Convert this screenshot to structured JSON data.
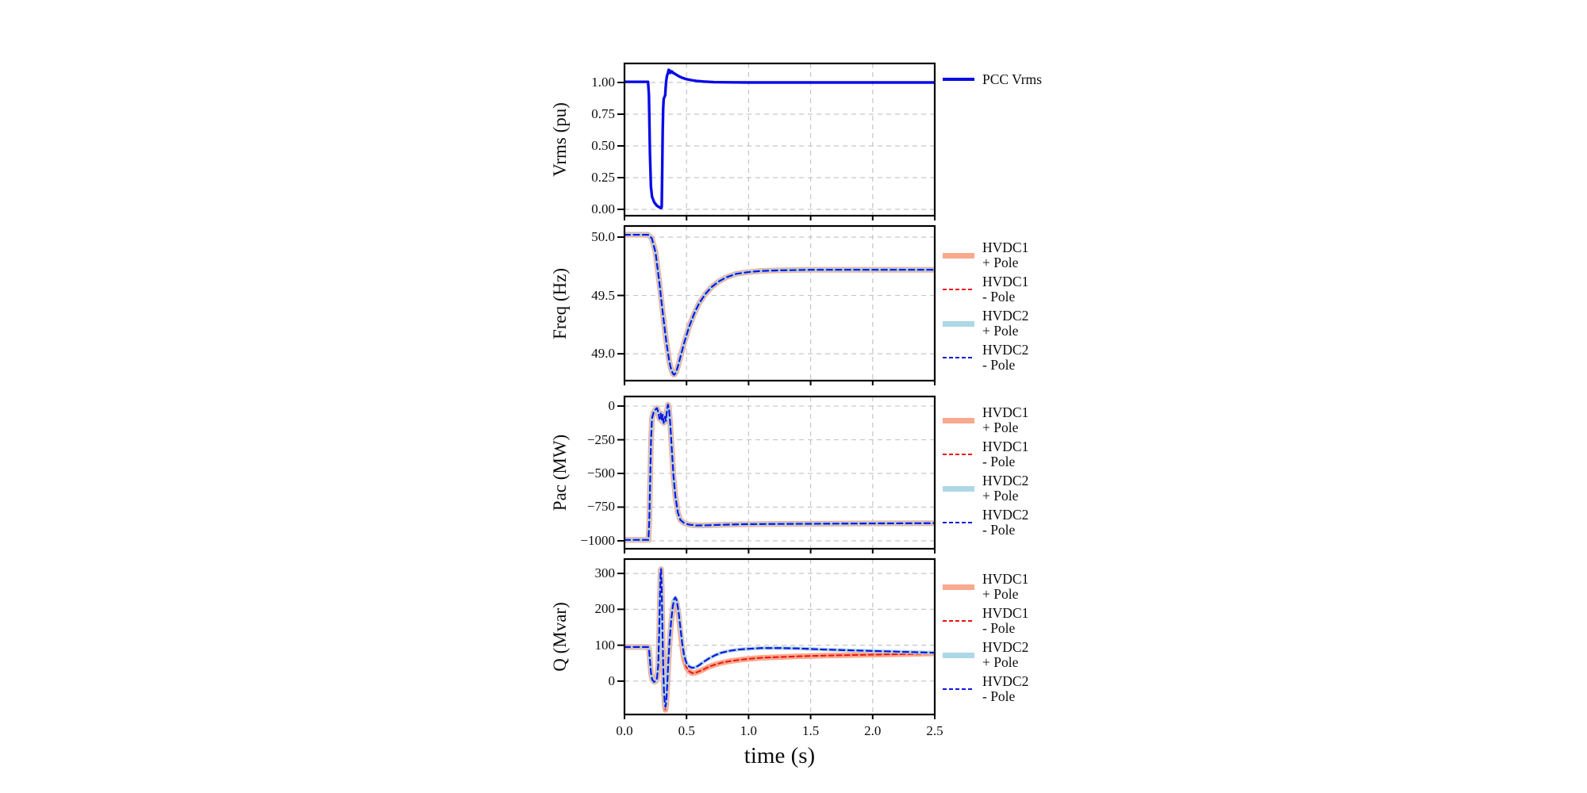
{
  "figure": {
    "xlabel": "time (s)",
    "xticks": [
      {
        "v": 0.0,
        "label": "0.0"
      },
      {
        "v": 0.5,
        "label": "0.5"
      },
      {
        "v": 1.0,
        "label": "1.0"
      },
      {
        "v": 1.5,
        "label": "1.5"
      },
      {
        "v": 2.0,
        "label": "2.0"
      },
      {
        "v": 2.5,
        "label": "2.5"
      }
    ],
    "background": "#ffffff"
  },
  "colors": {
    "pcc_blue": "#0a0ae8",
    "hvdc1_pos": "#f9a98c",
    "hvdc1_neg": "#ee1212",
    "hvdc2_pos": "#add8e6",
    "hvdc2_neg": "#1414e0",
    "grid": "#c6c6c6",
    "axis": "#000000"
  },
  "curves": {
    "vrms": [
      [
        0,
        1.005
      ],
      [
        0.19,
        1.005
      ],
      [
        0.197,
        0.9
      ],
      [
        0.205,
        0.45
      ],
      [
        0.213,
        0.18
      ],
      [
        0.222,
        0.1
      ],
      [
        0.24,
        0.055
      ],
      [
        0.26,
        0.03
      ],
      [
        0.275,
        0.02
      ],
      [
        0.29,
        0.012
      ],
      [
        0.296,
        0.01
      ],
      [
        0.3,
        0.02
      ],
      [
        0.304,
        0.3
      ],
      [
        0.308,
        0.62
      ],
      [
        0.312,
        0.8
      ],
      [
        0.316,
        0.87
      ],
      [
        0.322,
        0.885
      ],
      [
        0.328,
        0.9
      ],
      [
        0.332,
        0.96
      ],
      [
        0.336,
        1.01
      ],
      [
        0.342,
        1.05
      ],
      [
        0.35,
        1.075
      ],
      [
        0.356,
        1.1
      ],
      [
        0.36,
        1.08
      ],
      [
        0.364,
        1.095
      ],
      [
        0.368,
        1.075
      ],
      [
        0.372,
        1.09
      ],
      [
        0.378,
        1.08
      ],
      [
        0.385,
        1.085
      ],
      [
        0.392,
        1.075
      ],
      [
        0.4,
        1.072
      ],
      [
        0.42,
        1.06
      ],
      [
        0.44,
        1.048
      ],
      [
        0.47,
        1.035
      ],
      [
        0.5,
        1.026
      ],
      [
        0.54,
        1.018
      ],
      [
        0.58,
        1.012
      ],
      [
        0.64,
        1.007
      ],
      [
        0.72,
        1.003
      ],
      [
        0.85,
        1.001
      ],
      [
        1.0,
        1.0
      ],
      [
        2.5,
        1.0
      ]
    ],
    "freq": [
      [
        0,
        50.02
      ],
      [
        0.19,
        50.02
      ],
      [
        0.22,
        49.99
      ],
      [
        0.25,
        49.87
      ],
      [
        0.28,
        49.62
      ],
      [
        0.3,
        49.43
      ],
      [
        0.32,
        49.25
      ],
      [
        0.34,
        49.08
      ],
      [
        0.36,
        48.94
      ],
      [
        0.375,
        48.87
      ],
      [
        0.39,
        48.83
      ],
      [
        0.4,
        48.82
      ],
      [
        0.415,
        48.84
      ],
      [
        0.43,
        48.89
      ],
      [
        0.45,
        48.97
      ],
      [
        0.48,
        49.09
      ],
      [
        0.52,
        49.23
      ],
      [
        0.56,
        49.34
      ],
      [
        0.6,
        49.43
      ],
      [
        0.65,
        49.51
      ],
      [
        0.7,
        49.57
      ],
      [
        0.76,
        49.62
      ],
      [
        0.82,
        49.655
      ],
      [
        0.9,
        49.685
      ],
      [
        1.0,
        49.7
      ],
      [
        1.1,
        49.71
      ],
      [
        1.25,
        49.715
      ],
      [
        1.5,
        49.72
      ],
      [
        2.5,
        49.72
      ]
    ],
    "pac": [
      [
        0,
        -993
      ],
      [
        0.193,
        -993
      ],
      [
        0.2,
        -850
      ],
      [
        0.207,
        -550
      ],
      [
        0.214,
        -250
      ],
      [
        0.222,
        -90
      ],
      [
        0.235,
        -45
      ],
      [
        0.25,
        -25
      ],
      [
        0.262,
        -15
      ],
      [
        0.272,
        -45
      ],
      [
        0.282,
        -95
      ],
      [
        0.292,
        -55
      ],
      [
        0.3,
        -110
      ],
      [
        0.308,
        -65
      ],
      [
        0.316,
        -125
      ],
      [
        0.326,
        -80
      ],
      [
        0.334,
        -110
      ],
      [
        0.342,
        -35
      ],
      [
        0.35,
        10
      ],
      [
        0.358,
        -15
      ],
      [
        0.368,
        -120
      ],
      [
        0.38,
        -300
      ],
      [
        0.395,
        -520
      ],
      [
        0.41,
        -670
      ],
      [
        0.43,
        -790
      ],
      [
        0.45,
        -845
      ],
      [
        0.48,
        -868
      ],
      [
        0.52,
        -880
      ],
      [
        0.58,
        -886
      ],
      [
        0.66,
        -885
      ],
      [
        0.78,
        -881
      ],
      [
        0.95,
        -877
      ],
      [
        1.2,
        -875
      ],
      [
        1.6,
        -873
      ],
      [
        2.0,
        -871
      ],
      [
        2.5,
        -869
      ]
    ],
    "q_hvdc1": [
      [
        0,
        95
      ],
      [
        0.19,
        95
      ],
      [
        0.198,
        88
      ],
      [
        0.206,
        55
      ],
      [
        0.214,
        22
      ],
      [
        0.224,
        4
      ],
      [
        0.238,
        -2
      ],
      [
        0.252,
        0
      ],
      [
        0.262,
        8
      ],
      [
        0.272,
        45
      ],
      [
        0.28,
        140
      ],
      [
        0.286,
        240
      ],
      [
        0.291,
        308
      ],
      [
        0.295,
        312
      ],
      [
        0.3,
        260
      ],
      [
        0.306,
        140
      ],
      [
        0.312,
        40
      ],
      [
        0.318,
        -28
      ],
      [
        0.324,
        -65
      ],
      [
        0.33,
        -80
      ],
      [
        0.336,
        -68
      ],
      [
        0.344,
        -20
      ],
      [
        0.352,
        40
      ],
      [
        0.362,
        100
      ],
      [
        0.374,
        155
      ],
      [
        0.388,
        200
      ],
      [
        0.4,
        222
      ],
      [
        0.41,
        228
      ],
      [
        0.42,
        220
      ],
      [
        0.435,
        188
      ],
      [
        0.45,
        140
      ],
      [
        0.465,
        95
      ],
      [
        0.48,
        60
      ],
      [
        0.5,
        38
      ],
      [
        0.52,
        28
      ],
      [
        0.545,
        22
      ],
      [
        0.57,
        23
      ],
      [
        0.6,
        27
      ],
      [
        0.64,
        33
      ],
      [
        0.68,
        40
      ],
      [
        0.73,
        46
      ],
      [
        0.78,
        51
      ],
      [
        0.84,
        55
      ],
      [
        0.92,
        59
      ],
      [
        1.0,
        62
      ],
      [
        1.1,
        65
      ],
      [
        1.25,
        67
      ],
      [
        1.4,
        69
      ],
      [
        1.6,
        71
      ],
      [
        1.9,
        73
      ],
      [
        2.2,
        75
      ],
      [
        2.5,
        77
      ]
    ],
    "q_hvdc2": [
      [
        0,
        95
      ],
      [
        0.19,
        95
      ],
      [
        0.198,
        88
      ],
      [
        0.206,
        55
      ],
      [
        0.214,
        22
      ],
      [
        0.224,
        4
      ],
      [
        0.238,
        -2
      ],
      [
        0.252,
        0
      ],
      [
        0.262,
        8
      ],
      [
        0.272,
        45
      ],
      [
        0.28,
        140
      ],
      [
        0.286,
        240
      ],
      [
        0.291,
        308
      ],
      [
        0.295,
        312
      ],
      [
        0.3,
        260
      ],
      [
        0.306,
        140
      ],
      [
        0.312,
        40
      ],
      [
        0.318,
        -25
      ],
      [
        0.324,
        -58
      ],
      [
        0.33,
        -72
      ],
      [
        0.336,
        -60
      ],
      [
        0.344,
        -15
      ],
      [
        0.352,
        45
      ],
      [
        0.362,
        105
      ],
      [
        0.374,
        160
      ],
      [
        0.388,
        205
      ],
      [
        0.4,
        228
      ],
      [
        0.41,
        233
      ],
      [
        0.42,
        226
      ],
      [
        0.435,
        195
      ],
      [
        0.45,
        150
      ],
      [
        0.465,
        105
      ],
      [
        0.48,
        72
      ],
      [
        0.5,
        50
      ],
      [
        0.52,
        41
      ],
      [
        0.545,
        37
      ],
      [
        0.57,
        38
      ],
      [
        0.6,
        44
      ],
      [
        0.64,
        54
      ],
      [
        0.68,
        63
      ],
      [
        0.73,
        72
      ],
      [
        0.78,
        79
      ],
      [
        0.84,
        84
      ],
      [
        0.92,
        88
      ],
      [
        1.0,
        90
      ],
      [
        1.1,
        92
      ],
      [
        1.25,
        92
      ],
      [
        1.4,
        91
      ],
      [
        1.6,
        88
      ],
      [
        1.8,
        86
      ],
      [
        2.0,
        84
      ],
      [
        2.2,
        82
      ],
      [
        2.5,
        79
      ]
    ]
  },
  "chart_data": [
    {
      "type": "line",
      "id": "vrms",
      "ylabel": "Vrms (pu)",
      "xlabel": "time (s)",
      "xlim": [
        0,
        2.5
      ],
      "ylim": [
        -0.05,
        1.15
      ],
      "grid": true,
      "legend_position": "right",
      "yticks": [
        {
          "v": 1.0,
          "label": "1.00"
        },
        {
          "v": 0.75,
          "label": "0.75"
        },
        {
          "v": 0.5,
          "label": "0.50"
        },
        {
          "v": 0.25,
          "label": "0.25"
        },
        {
          "v": 0.0,
          "label": "0.00"
        }
      ],
      "series": [
        {
          "id": "pcc-vrms",
          "name": "PCC Vrms",
          "label_lines": [
            "PCC Vrms"
          ],
          "curve": "vrms",
          "color": "pcc_blue",
          "width": 3.4,
          "dash": null,
          "sample": "solid"
        }
      ]
    },
    {
      "type": "line",
      "id": "freq",
      "ylabel": "Freq (Hz)",
      "xlim": [
        0,
        2.5
      ],
      "ylim": [
        48.77,
        50.095
      ],
      "grid": true,
      "legend_position": "right",
      "yticks": [
        {
          "v": 50.0,
          "label": "50.0"
        },
        {
          "v": 49.5,
          "label": "49.5"
        },
        {
          "v": 49.0,
          "label": "49.0"
        }
      ],
      "series": [
        {
          "id": "freq-hvdc1-pos",
          "name": "HVDC1 + Pole",
          "label_lines": [
            "HVDC1",
            "+ Pole"
          ],
          "curve": "freq",
          "color": "hvdc1_pos",
          "width": 7,
          "dash": null,
          "sample": "thick"
        },
        {
          "id": "freq-hvdc1-neg",
          "name": "HVDC1 - Pole",
          "label_lines": [
            "HVDC1",
            "- Pole"
          ],
          "curve": "freq",
          "color": "hvdc1_neg",
          "width": 2,
          "dash": "6 4",
          "sample": "dash"
        },
        {
          "id": "freq-hvdc2-pos",
          "name": "HVDC2 + Pole",
          "label_lines": [
            "HVDC2",
            "+ Pole"
          ],
          "curve": "freq",
          "color": "hvdc2_pos",
          "width": 4.5,
          "dash": null,
          "sample": "thick"
        },
        {
          "id": "freq-hvdc2-neg",
          "name": "HVDC2 - Pole",
          "label_lines": [
            "HVDC2",
            "- Pole"
          ],
          "curve": "freq",
          "color": "hvdc2_neg",
          "width": 2.2,
          "dash": "7 4.5",
          "sample": "dash"
        }
      ]
    },
    {
      "type": "line",
      "id": "pac",
      "ylabel": "Pac (MW)",
      "xlim": [
        0,
        2.5
      ],
      "ylim": [
        -1059,
        71
      ],
      "grid": true,
      "legend_position": "right",
      "yticks": [
        {
          "v": 0,
          "label": "0"
        },
        {
          "v": -250,
          "label": "−250"
        },
        {
          "v": -500,
          "label": "−500"
        },
        {
          "v": -750,
          "label": "−750"
        },
        {
          "v": -1000,
          "label": "−1000"
        }
      ],
      "series": [
        {
          "id": "pac-hvdc1-pos",
          "name": "HVDC1 + Pole",
          "label_lines": [
            "HVDC1",
            "+ Pole"
          ],
          "curve": "pac",
          "color": "hvdc1_pos",
          "width": 7,
          "dash": null,
          "sample": "thick"
        },
        {
          "id": "pac-hvdc1-neg",
          "name": "HVDC1 - Pole",
          "label_lines": [
            "HVDC1",
            "- Pole"
          ],
          "curve": "pac",
          "color": "hvdc1_neg",
          "width": 2,
          "dash": "6 4",
          "sample": "dash"
        },
        {
          "id": "pac-hvdc2-pos",
          "name": "HVDC2 + Pole",
          "label_lines": [
            "HVDC2",
            "+ Pole"
          ],
          "curve": "pac",
          "color": "hvdc2_pos",
          "width": 4.5,
          "dash": null,
          "sample": "thick"
        },
        {
          "id": "pac-hvdc2-neg",
          "name": "HVDC2 - Pole",
          "label_lines": [
            "HVDC2",
            "- Pole"
          ],
          "curve": "pac",
          "color": "hvdc2_neg",
          "width": 2.2,
          "dash": "7 4.5",
          "sample": "dash"
        }
      ]
    },
    {
      "type": "line",
      "id": "q",
      "ylabel": "Q (Mvar)",
      "xlim": [
        0,
        2.5
      ],
      "ylim": [
        -93,
        340
      ],
      "grid": true,
      "legend_position": "right",
      "yticks": [
        {
          "v": 300,
          "label": "300"
        },
        {
          "v": 200,
          "label": "200"
        },
        {
          "v": 100,
          "label": "100"
        },
        {
          "v": 0,
          "label": "0"
        }
      ],
      "series": [
        {
          "id": "q-hvdc1-pos",
          "name": "HVDC1 + Pole",
          "label_lines": [
            "HVDC1",
            "+ Pole"
          ],
          "curve": "q_hvdc1",
          "color": "hvdc1_pos",
          "width": 7,
          "dash": null,
          "sample": "thick"
        },
        {
          "id": "q-hvdc1-neg",
          "name": "HVDC1 - Pole",
          "label_lines": [
            "HVDC1",
            "- Pole"
          ],
          "curve": "q_hvdc1",
          "color": "hvdc1_neg",
          "width": 2,
          "dash": "6 4",
          "sample": "dash"
        },
        {
          "id": "q-hvdc2-pos",
          "name": "HVDC2 + Pole",
          "label_lines": [
            "HVDC2",
            "+ Pole"
          ],
          "curve": "q_hvdc2",
          "color": "hvdc2_pos",
          "width": 4.5,
          "dash": null,
          "sample": "thick"
        },
        {
          "id": "q-hvdc2-neg",
          "name": "HVDC2 - Pole",
          "label_lines": [
            "HVDC2",
            "- Pole"
          ],
          "curve": "q_hvdc2",
          "color": "hvdc2_neg",
          "width": 2.2,
          "dash": "7 4.5",
          "sample": "dash"
        }
      ]
    }
  ]
}
